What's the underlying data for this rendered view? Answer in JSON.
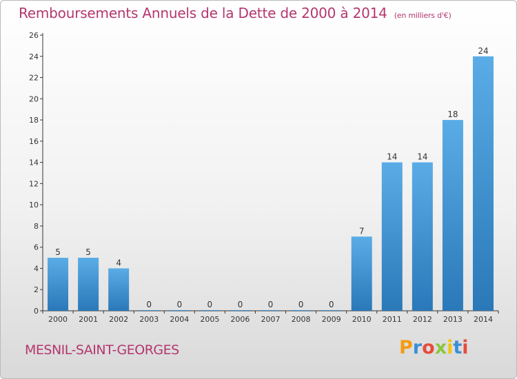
{
  "header": {
    "title": "Remboursements Annuels de la Dette de 2000 à 2014",
    "unit": "(en milliers d'€)"
  },
  "footer": {
    "commune": "MESNIL-SAINT-GEORGES",
    "brand": "Proxiti",
    "brand_letters": [
      {
        "ch": "P",
        "color": "#f39c12"
      },
      {
        "ch": "r",
        "color": "#3a8fd6"
      },
      {
        "ch": "o",
        "color": "#e74c3c"
      },
      {
        "ch": "x",
        "color": "#8cc63f"
      },
      {
        "ch": "i",
        "color": "#f1c40f"
      },
      {
        "ch": "t",
        "color": "#3a8fd6"
      },
      {
        "ch": "i",
        "color": "#e74c3c"
      }
    ]
  },
  "colors": {
    "title": "#b4366e",
    "bar_light": "#5aace6",
    "bar_dark": "#2a78b8",
    "axis": "#333333"
  },
  "chart_data": {
    "type": "bar",
    "title": "Remboursements Annuels de la Dette de 2000 à 2014",
    "subtitle": "(en milliers d'€)",
    "categories": [
      "2000",
      "2001",
      "2002",
      "2003",
      "2004",
      "2005",
      "2006",
      "2007",
      "2008",
      "2009",
      "2010",
      "2011",
      "2012",
      "2013",
      "2014"
    ],
    "values": [
      5,
      5,
      4,
      0,
      0,
      0,
      0,
      0,
      0,
      0,
      7,
      14,
      14,
      18,
      24
    ],
    "ylim": [
      0,
      26
    ],
    "yticks": [
      0,
      2,
      4,
      6,
      8,
      10,
      12,
      14,
      16,
      18,
      20,
      22,
      24,
      26
    ],
    "grid": false,
    "legend": "none"
  }
}
